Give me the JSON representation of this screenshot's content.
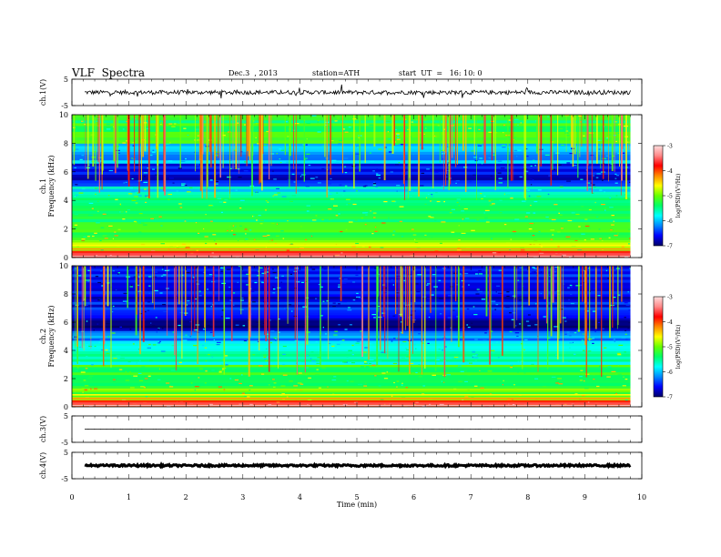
{
  "header": {
    "title": "VLF  Spectra",
    "date": "Dec.3  , 2013",
    "station": "station=ATH",
    "start": "start  UT  =   16: 10: 0"
  },
  "chart_data": [
    {
      "type": "line",
      "panel": "ch1-waveform",
      "ylabel": "ch.1(V)",
      "ylim": [
        -5,
        5
      ],
      "yticks": [
        "5",
        "-5"
      ],
      "x_range_min": [
        0,
        9.8
      ],
      "baseline_v": 0,
      "noise_amplitude_v": 0.8,
      "color": "#000000"
    },
    {
      "type": "heatmap",
      "panel": "ch1-spectrogram",
      "ylabel_top": "ch.1",
      "ylabel": "Frequency  (kHz)",
      "ylim": [
        0,
        10
      ],
      "yticks": [
        "0",
        "2",
        "4",
        "6",
        "8",
        "10"
      ],
      "x_range_min": [
        0,
        9.8
      ],
      "colorbar": {
        "label": "log(PSD)(V²/Hz)",
        "range": [
          -7,
          -3
        ],
        "ticks": [
          "-3",
          "-4",
          "-5",
          "-6",
          "-7"
        ],
        "colors": [
          "#000066",
          "#0000ff",
          "#0088ff",
          "#00ffff",
          "#00ff66",
          "#66ff00",
          "#ffff00",
          "#ff8800",
          "#ff0000",
          "#ff8888",
          "#ffdddd"
        ]
      },
      "bands_khz_logpsd": [
        {
          "from": 0,
          "to": 0.5,
          "value": -3.6
        },
        {
          "from": 0.5,
          "to": 1.2,
          "value": -4.9
        },
        {
          "from": 1.2,
          "to": 2.5,
          "value": -5.1
        },
        {
          "from": 2.5,
          "to": 4.2,
          "value": -5.3
        },
        {
          "from": 4.2,
          "to": 5.0,
          "value": -5.8
        },
        {
          "from": 5.0,
          "to": 6.6,
          "value": -6.6
        },
        {
          "from": 6.6,
          "to": 8.0,
          "value": -6.1
        },
        {
          "from": 8.0,
          "to": 10.0,
          "value": -5.3
        }
      ]
    },
    {
      "type": "heatmap",
      "panel": "ch2-spectrogram",
      "ylabel_top": "ch.2",
      "ylabel": "Frequency  (kHz)",
      "ylim": [
        0,
        10
      ],
      "yticks": [
        "0",
        "2",
        "4",
        "6",
        "8",
        "10"
      ],
      "x_range_min": [
        0,
        9.8
      ],
      "colorbar": {
        "label": "log(PSD)(V²/Hz)",
        "range": [
          -7,
          -3
        ],
        "ticks": [
          "-3",
          "-4",
          "-5",
          "-6",
          "-7"
        ],
        "colors": [
          "#000066",
          "#0000ff",
          "#0088ff",
          "#00ffff",
          "#00ff66",
          "#66ff00",
          "#ffff00",
          "#ff8800",
          "#ff0000",
          "#ff8888",
          "#ffdddd"
        ]
      },
      "bands_khz_logpsd": [
        {
          "from": 0,
          "to": 0.5,
          "value": -3.9
        },
        {
          "from": 0.5,
          "to": 1.5,
          "value": -5.0
        },
        {
          "from": 1.5,
          "to": 3.0,
          "value": -5.2
        },
        {
          "from": 3.0,
          "to": 4.5,
          "value": -5.7
        },
        {
          "from": 4.5,
          "to": 5.4,
          "value": -6.1
        },
        {
          "from": 5.4,
          "to": 6.3,
          "value": -6.8
        },
        {
          "from": 6.3,
          "to": 8.0,
          "value": -6.6
        },
        {
          "from": 8.0,
          "to": 10.0,
          "value": -6.5
        }
      ]
    },
    {
      "type": "line",
      "panel": "ch3-waveform",
      "ylabel": "ch.3(V)",
      "ylim": [
        -5,
        5
      ],
      "yticks": [
        "5",
        "-5"
      ],
      "x_range_min": [
        0,
        9.8
      ],
      "baseline_v": 0,
      "noise_amplitude_v": 0.05,
      "color": "#000000"
    },
    {
      "type": "line",
      "panel": "ch4-waveform",
      "ylabel": "ch.4(V)",
      "ylim": [
        -5,
        5
      ],
      "yticks": [
        "5",
        "-5"
      ],
      "x_range_min": [
        0,
        9.8
      ],
      "baseline_v": 0,
      "noise_amplitude_v": 0.35,
      "color": "#000000"
    }
  ],
  "xaxis": {
    "label": "Time  (min)",
    "range": [
      0,
      10
    ],
    "ticks": [
      "0",
      "1",
      "2",
      "3",
      "4",
      "5",
      "6",
      "7",
      "8",
      "9",
      "10"
    ]
  }
}
